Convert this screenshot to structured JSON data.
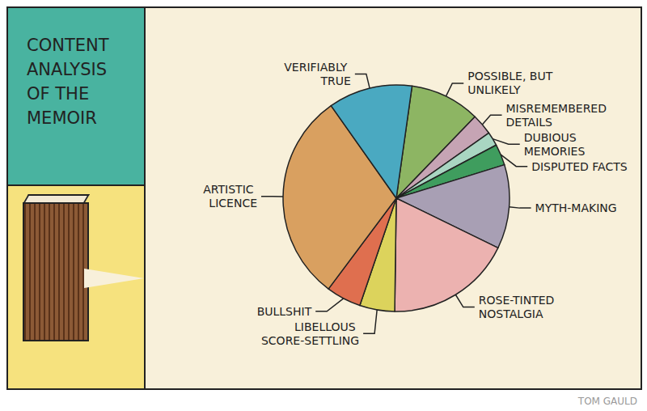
{
  "chart_data": {
    "type": "pie",
    "title": "CONTENT ANALYSIS OF THE MEMOIR",
    "categories": [
      "POSSIBLE, BUT UNLIKELY",
      "MISREMEMBERED DETAILS",
      "DUBIOUS MEMORIES",
      "DISPUTED FACTS",
      "MYTH-MAKING",
      "ROSE-TINTED NOSTALGIA",
      "LIBELLOUS SCORE-SETTLING",
      "BULLSHIT",
      "ARTISTIC LICENCE",
      "VERIFIABLY TRUE"
    ],
    "values": [
      10,
      3,
      2,
      3,
      12,
      18,
      5,
      5,
      30,
      12
    ],
    "colors": [
      "#8db563",
      "#c6a4b4",
      "#a9d6c2",
      "#3f9d5e",
      "#a89fb4",
      "#ecb2b0",
      "#dcd35c",
      "#df6f4f",
      "#d9a060",
      "#4aa9c1"
    ],
    "annotations": [
      "TOM GAULD"
    ]
  }
}
